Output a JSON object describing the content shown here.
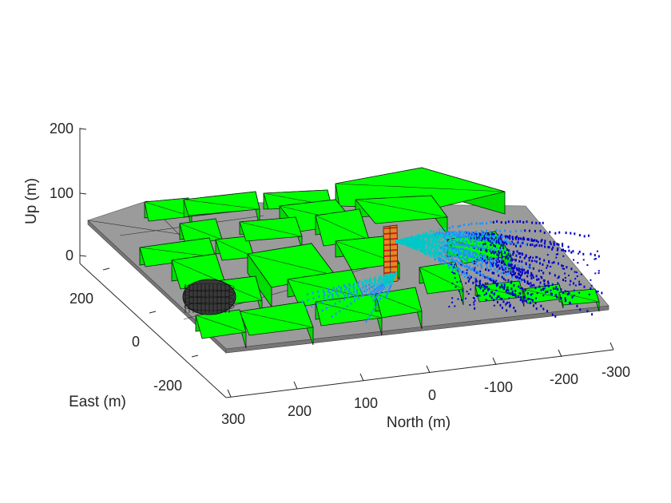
{
  "chart_data": {
    "type": "3d-scene",
    "title": "",
    "xlabel": "North (m)",
    "ylabel": "East (m)",
    "zlabel": "Up (m)",
    "x_ticks": [
      "300",
      "200",
      "100",
      "0",
      "-100",
      "-200",
      "-300"
    ],
    "y_ticks": [
      "200",
      "0",
      "-200"
    ],
    "z_ticks": [
      "200",
      "100",
      "0"
    ],
    "xlim": [
      -300,
      300
    ],
    "ylim": [
      -250,
      250
    ],
    "zlim": [
      0,
      200
    ],
    "grid": false,
    "colors": {
      "buildings": "#00ff00",
      "ground": "#9b9b9b",
      "edges": "#1a1a1a",
      "rays_far": "#0000cc",
      "rays_mid": "#1e90ff",
      "rays_near": "#00c8c8",
      "tower_hot": "#d81b1b",
      "tower_warm": "#e08a1e"
    }
  }
}
